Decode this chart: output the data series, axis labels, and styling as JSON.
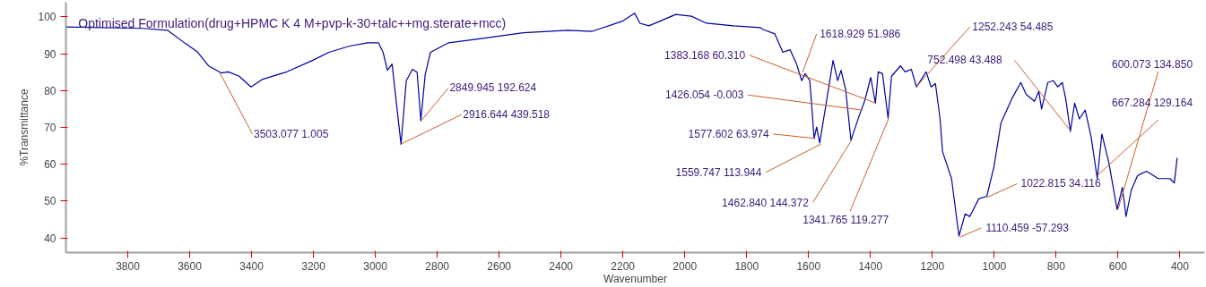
{
  "chart_data": {
    "type": "line",
    "title": "Optimised Formulation(drug+HPMC K 4 M+pvp-k-30+talc++mg.sterate+mcc)",
    "xlabel": "Wavenumber",
    "ylabel": "%Transmittance",
    "xlim": [
      4000,
      320
    ],
    "ylim": [
      36,
      104
    ],
    "xticks": [
      3800,
      3600,
      3400,
      3200,
      3000,
      2800,
      2600,
      2400,
      2200,
      2000,
      1800,
      1600,
      1400,
      1200,
      1000,
      800,
      600,
      400
    ],
    "yticks": [
      40,
      50,
      60,
      70,
      80,
      90,
      100
    ],
    "grid": false,
    "marker": "none",
    "line_style": "solid",
    "series": [
      {
        "color": "#0000a0",
        "x": [
          4000,
          3751,
          3672,
          3614,
          3576,
          3539,
          3498,
          3475,
          3440,
          3402,
          3364,
          3286,
          3208,
          3150,
          3083,
          3025,
          2990,
          2975,
          2961,
          2946,
          2917,
          2900,
          2880,
          2865,
          2853,
          2839,
          2822,
          2763,
          2668,
          2522,
          2377,
          2299,
          2203,
          2162,
          2145,
          2116,
          2029,
          1979,
          1930,
          1843,
          1756,
          1747,
          1709,
          1683,
          1660,
          1640,
          1622,
          1611,
          1596,
          1582,
          1574,
          1564,
          1544,
          1521,
          1506,
          1495,
          1480,
          1463,
          1437,
          1419,
          1399,
          1384,
          1375,
          1361,
          1343,
          1332,
          1303,
          1288,
          1268,
          1251,
          1220,
          1204,
          1190,
          1175,
          1167,
          1138,
          1114,
          1094,
          1079,
          1050,
          1024,
          1001,
          978,
          943,
          914,
          897,
          870,
          856,
          847,
          827,
          809,
          795,
          780,
          769,
          754,
          740,
          725,
          706,
          687,
          667,
          652,
          629,
          603,
          586,
          574,
          557,
          537,
          508,
          470,
          432,
          418,
          409
        ],
        "values": [
          97.3,
          96.9,
          96.4,
          92.8,
          90.6,
          86.7,
          84.8,
          85.1,
          83.9,
          81,
          83.1,
          85.1,
          88,
          90.4,
          92.1,
          93,
          93,
          90.4,
          85.5,
          87.2,
          65.4,
          82.7,
          85.8,
          85,
          71.8,
          84.3,
          90.4,
          93,
          94,
          95.7,
          96.4,
          96.1,
          98.8,
          101,
          98.3,
          97.6,
          100.7,
          100.2,
          98.3,
          97.6,
          97.1,
          96.6,
          95.4,
          90.4,
          91.1,
          87.5,
          82.7,
          84.6,
          82.7,
          67,
          70.1,
          65.8,
          76.1,
          88.2,
          82.7,
          85.5,
          80.2,
          66.5,
          73,
          77.1,
          83.6,
          76.6,
          85.1,
          84.6,
          72.5,
          83.9,
          86.7,
          85.1,
          85.8,
          81,
          85.1,
          81,
          81.9,
          72.3,
          63.4,
          56.1,
          40.5,
          46.5,
          45.8,
          50.6,
          51.3,
          59.3,
          71.3,
          77.8,
          82.2,
          79,
          77.1,
          79.8,
          75,
          82.2,
          82.7,
          81,
          82.2,
          77.8,
          68.9,
          76.6,
          72.3,
          74.7,
          67.5,
          56.1,
          68.2,
          60.2,
          47.7,
          53.7,
          45.8,
          53,
          56.9,
          58.1,
          56.1,
          56.1,
          54.9,
          61.7
        ]
      }
    ],
    "annotations": [
      {
        "text": "3503.077  1.005",
        "x": 3503.077,
        "y": 84.9
      },
      {
        "text": "2849.945  192.624",
        "x": 2849.945,
        "y": 72
      },
      {
        "text": "2916.644  439.518",
        "x": 2916.644,
        "y": 65.5
      },
      {
        "text": "1618.929  51.986",
        "x": 1618.929,
        "y": 85
      },
      {
        "text": "1383.168  60.310",
        "x": 1383.168,
        "y": 76.6
      },
      {
        "text": "1426.054  -0.003",
        "x": 1426.054,
        "y": 74.7
      },
      {
        "text": "1577.602  63.974",
        "x": 1577.602,
        "y": 67
      },
      {
        "text": "1559.747  113.944",
        "x": 1559.747,
        "y": 65.5
      },
      {
        "text": "1462.840  144.372",
        "x": 1462.84,
        "y": 66.3
      },
      {
        "text": "1341.765  119.277",
        "x": 1341.765,
        "y": 72.3
      },
      {
        "text": "1252.243  54.485",
        "x": 1252.243,
        "y": 81
      },
      {
        "text": "752.498  43.488",
        "x": 752.498,
        "y": 69
      },
      {
        "text": "1022.815  34.116",
        "x": 1022.815,
        "y": 51
      },
      {
        "text": "1110.459  -57.293",
        "x": 1110.459,
        "y": 40.2
      },
      {
        "text": "667.284  129.164",
        "x": 667.284,
        "y": 56.9
      },
      {
        "text": "600.073  134.850",
        "x": 600.073,
        "y": 47.7
      }
    ]
  }
}
